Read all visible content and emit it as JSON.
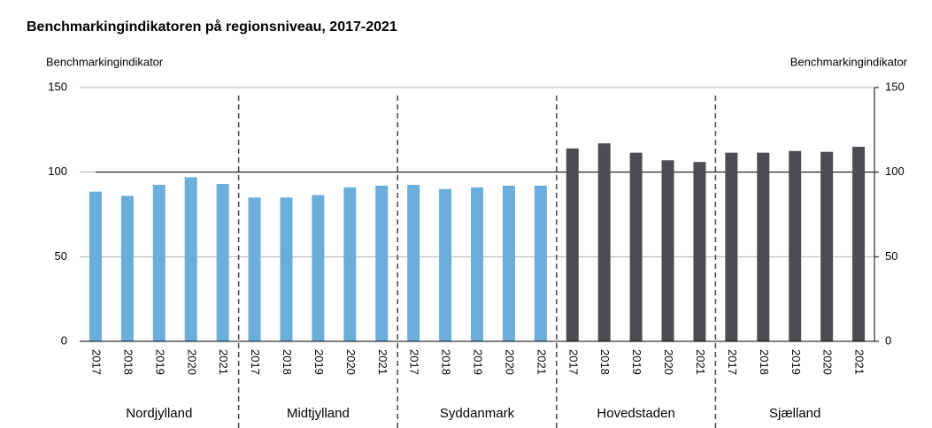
{
  "chart_data": {
    "type": "grouped_bar",
    "title": "Benchmarkingindikatoren på regionsniveau, 2017-2021",
    "y_label": "Benchmarkingindikator",
    "y2_label": "Benchmarkingindikator",
    "ylim": [
      0,
      150
    ],
    "yticks": [
      0,
      50,
      100,
      150
    ],
    "y2lim": [
      0,
      150
    ],
    "y2ticks": [
      0,
      50,
      100,
      150
    ],
    "grid": true,
    "reference_line": 100,
    "groups": [
      {
        "name": "Nordjylland",
        "color": "#6aaedb",
        "categories": [
          "2017",
          "2018",
          "2019",
          "2020",
          "2021"
        ],
        "values": [
          88.5,
          86,
          92.5,
          97,
          93
        ]
      },
      {
        "name": "Midtjylland",
        "color": "#6aaedb",
        "categories": [
          "2017",
          "2018",
          "2019",
          "2020",
          "2021"
        ],
        "values": [
          85,
          85,
          86.5,
          91,
          92
        ]
      },
      {
        "name": "Syddanmark",
        "color": "#6aaedb",
        "categories": [
          "2017",
          "2018",
          "2019",
          "2020",
          "2021"
        ],
        "values": [
          92.5,
          90,
          91,
          92,
          92
        ]
      },
      {
        "name": "Hovedstaden",
        "color": "#4d4d51",
        "categories": [
          "2017",
          "2018",
          "2019",
          "2020",
          "2021"
        ],
        "values": [
          114,
          117,
          111.5,
          107,
          106
        ]
      },
      {
        "name": "Sjælland",
        "color": "#4d4d51",
        "categories": [
          "2017",
          "2018",
          "2019",
          "2020",
          "2021"
        ],
        "values": [
          111.5,
          111.5,
          112.5,
          112,
          115
        ]
      }
    ]
  }
}
